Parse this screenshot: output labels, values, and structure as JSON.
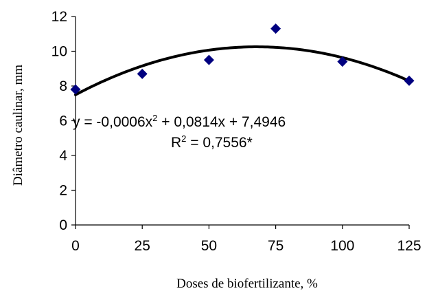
{
  "chart_data": {
    "type": "scatter",
    "title": "",
    "xlabel": "Doses de biofertilizante,  %",
    "ylabel": "Diâmetro caulinar,  mm",
    "xlim": [
      0,
      125
    ],
    "ylim": [
      0,
      12
    ],
    "x_ticks": [
      0,
      25,
      50,
      75,
      100,
      125
    ],
    "y_ticks": [
      0,
      2,
      4,
      6,
      8,
      10,
      12
    ],
    "grid": false,
    "points": {
      "x": [
        0,
        25,
        50,
        75,
        100,
        125
      ],
      "y": [
        7.8,
        8.7,
        9.5,
        11.3,
        9.4,
        8.3
      ]
    },
    "marker_color": "#000080",
    "trendline": {
      "type": "polynomial",
      "coefficients": {
        "a": -0.0006,
        "b": 0.0814,
        "c": 7.4946
      },
      "color": "#000000"
    },
    "annotations": {
      "equation_prefix": "y = -0,0006x",
      "equation_exp": "2",
      "equation_suffix": " + 0,0814x + 7,4946",
      "r2_prefix": "R",
      "r2_exp": "2",
      "r2_suffix": " = 0,7556*"
    }
  }
}
